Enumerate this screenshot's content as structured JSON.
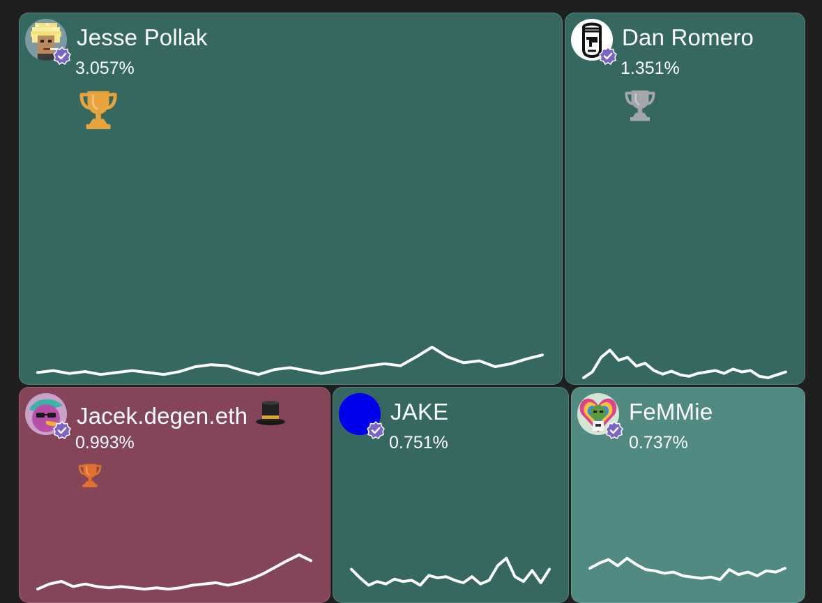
{
  "theme": {
    "background": "#1f1f1f",
    "tile_green": "#366862",
    "tile_teal": "#508a82",
    "tile_maroon": "#834557",
    "badge_purple": "#7a63c9",
    "gold": "#e8a33a",
    "silver": "#a3a6ab",
    "bronze": "#e0702e"
  },
  "tiles": [
    {
      "name": "Jesse Pollak",
      "share": "3.057%",
      "rank_icon": "gold-trophy-icon",
      "verified": true,
      "trend": [
        4,
        6,
        3,
        5,
        2,
        4,
        6,
        4,
        2,
        5,
        10,
        12,
        11,
        6,
        2,
        7,
        9,
        6,
        3,
        6,
        8,
        11,
        13,
        11,
        20,
        30,
        20,
        14,
        16,
        10,
        13,
        18,
        22
      ]
    },
    {
      "name": "Dan Romero",
      "share": "1.351%",
      "rank_icon": "silver-trophy-icon",
      "verified": true,
      "trend": [
        2,
        10,
        30,
        40,
        26,
        30,
        18,
        22,
        12,
        7,
        11,
        6,
        4,
        8,
        10,
        12,
        8,
        14,
        10,
        12,
        4,
        2,
        6,
        10
      ]
    },
    {
      "name": "Jacek.degen.eth",
      "emoji": "🎩",
      "share": "0.993%",
      "rank_icon": "bronze-trophy-icon",
      "verified": true,
      "trend": [
        2,
        10,
        14,
        6,
        10,
        6,
        4,
        6,
        4,
        2,
        4,
        2,
        4,
        8,
        10,
        12,
        8,
        12,
        18,
        26,
        36,
        46,
        55,
        46
      ]
    },
    {
      "name": "JAKE",
      "share": "0.751%",
      "verified": true,
      "trend": [
        30,
        16,
        4,
        10,
        6,
        14,
        10,
        12,
        4,
        20,
        16,
        18,
        12,
        8,
        18,
        6,
        12,
        36,
        48,
        18,
        10,
        28,
        8,
        30
      ]
    },
    {
      "name": "FeMMie",
      "share": "0.737%",
      "verified": true,
      "trend": [
        22,
        30,
        36,
        26,
        38,
        28,
        20,
        18,
        14,
        16,
        10,
        8,
        6,
        8,
        4,
        20,
        12,
        16,
        10,
        18,
        16,
        22
      ]
    }
  ]
}
